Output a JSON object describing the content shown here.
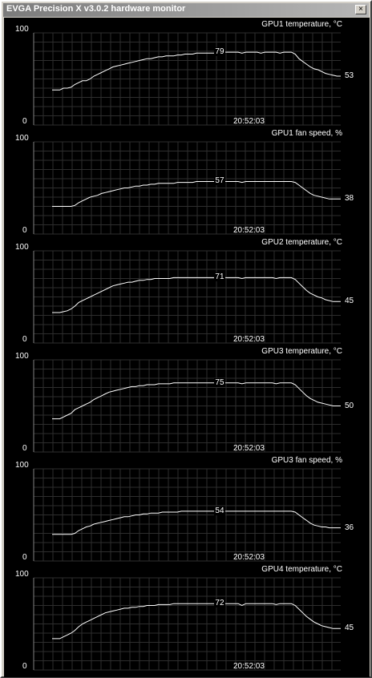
{
  "window": {
    "title": "EVGA Precision X v3.0.2 hardware monitor",
    "close_label": "×"
  },
  "graphs": [
    {
      "title": "GPU1 temperature, °C",
      "y_max": "100",
      "y_min": "0",
      "time": "20:52:03",
      "current": "53",
      "max": "79",
      "series": [
        38,
        38,
        38,
        40,
        40,
        41,
        44,
        46,
        48,
        48,
        50,
        53,
        55,
        57,
        59,
        61,
        63,
        64,
        65,
        66,
        67,
        68,
        69,
        70,
        71,
        72,
        72,
        73,
        74,
        74,
        75,
        75,
        75,
        76,
        76,
        77,
        77,
        77,
        78,
        78,
        78,
        78,
        78,
        78,
        79,
        79,
        79,
        79,
        79,
        79,
        78,
        79,
        79,
        79,
        79,
        78,
        79,
        79,
        79,
        79,
        78,
        79,
        79,
        79,
        77,
        72,
        69,
        66,
        63,
        61,
        60,
        58,
        56,
        55,
        54,
        53,
        53
      ]
    },
    {
      "title": "GPU1 fan speed, %",
      "y_max": "100",
      "y_min": "0",
      "time": "20:52:03",
      "current": "38",
      "max": "57",
      "series": [
        30,
        30,
        30,
        30,
        30,
        30,
        31,
        34,
        36,
        38,
        40,
        41,
        42,
        44,
        45,
        46,
        47,
        48,
        49,
        50,
        50,
        51,
        52,
        52,
        53,
        53,
        54,
        54,
        55,
        55,
        55,
        55,
        55,
        56,
        56,
        56,
        56,
        56,
        57,
        57,
        57,
        57,
        57,
        57,
        57,
        57,
        57,
        57,
        57,
        57,
        56,
        57,
        57,
        57,
        57,
        57,
        57,
        57,
        57,
        57,
        57,
        57,
        57,
        57,
        56,
        53,
        50,
        47,
        44,
        42,
        41,
        40,
        39,
        38,
        38,
        38,
        38
      ]
    },
    {
      "title": "GPU2 temperature, °C",
      "y_max": "100",
      "y_min": "0",
      "time": "20:52:03",
      "current": "45",
      "max": "71",
      "series": [
        33,
        33,
        33,
        34,
        35,
        37,
        40,
        44,
        46,
        48,
        50,
        52,
        54,
        56,
        58,
        60,
        62,
        63,
        64,
        65,
        66,
        66,
        67,
        68,
        68,
        69,
        69,
        70,
        70,
        70,
        70,
        70,
        71,
        71,
        71,
        71,
        71,
        71,
        71,
        71,
        71,
        71,
        71,
        71,
        71,
        71,
        71,
        71,
        71,
        71,
        70,
        71,
        71,
        71,
        71,
        71,
        71,
        71,
        71,
        70,
        71,
        71,
        71,
        71,
        69,
        65,
        61,
        57,
        54,
        52,
        50,
        49,
        47,
        46,
        45,
        45,
        45
      ]
    },
    {
      "title": "GPU3 temperature, °C",
      "y_max": "100",
      "y_min": "0",
      "time": "20:52:03",
      "current": "50",
      "max": "75",
      "series": [
        36,
        36,
        36,
        38,
        40,
        42,
        46,
        48,
        50,
        52,
        54,
        57,
        59,
        61,
        63,
        65,
        66,
        67,
        68,
        69,
        70,
        71,
        71,
        72,
        72,
        73,
        73,
        73,
        74,
        74,
        74,
        74,
        75,
        75,
        75,
        75,
        75,
        75,
        75,
        75,
        75,
        75,
        75,
        75,
        75,
        75,
        75,
        75,
        75,
        75,
        74,
        75,
        75,
        75,
        75,
        75,
        75,
        75,
        75,
        74,
        75,
        75,
        75,
        75,
        73,
        69,
        65,
        61,
        58,
        56,
        54,
        53,
        52,
        51,
        50,
        50,
        50
      ]
    },
    {
      "title": "GPU3 fan speed, %",
      "y_max": "100",
      "y_min": "0",
      "time": "20:52:03",
      "current": "36",
      "max": "54",
      "series": [
        29,
        29,
        29,
        29,
        29,
        29,
        30,
        33,
        35,
        37,
        38,
        40,
        41,
        42,
        43,
        44,
        45,
        46,
        47,
        48,
        48,
        49,
        50,
        50,
        51,
        51,
        52,
        52,
        52,
        53,
        53,
        53,
        53,
        53,
        54,
        54,
        54,
        54,
        54,
        54,
        54,
        54,
        54,
        54,
        54,
        54,
        54,
        54,
        54,
        54,
        54,
        54,
        54,
        54,
        54,
        54,
        54,
        54,
        54,
        54,
        54,
        54,
        54,
        54,
        53,
        50,
        47,
        44,
        41,
        39,
        38,
        37,
        37,
        36,
        36,
        36,
        36
      ]
    },
    {
      "title": "GPU4 temperature, °C",
      "y_max": "100",
      "y_min": "0",
      "time": "20:52:03",
      "current": "45",
      "max": "72",
      "series": [
        34,
        34,
        34,
        36,
        38,
        40,
        43,
        47,
        50,
        52,
        54,
        56,
        58,
        60,
        62,
        63,
        64,
        65,
        66,
        67,
        67,
        68,
        68,
        69,
        69,
        70,
        70,
        70,
        71,
        71,
        71,
        71,
        72,
        72,
        72,
        72,
        72,
        72,
        72,
        72,
        72,
        72,
        72,
        72,
        72,
        72,
        72,
        72,
        72,
        72,
        70,
        72,
        72,
        72,
        72,
        72,
        72,
        72,
        72,
        71,
        72,
        72,
        72,
        72,
        70,
        66,
        62,
        58,
        55,
        52,
        50,
        48,
        47,
        46,
        45,
        45,
        45
      ]
    }
  ],
  "colors": {
    "background": "#000000",
    "grid": "#2e2e2e",
    "line": "#ffffff",
    "frame": "#d4d0c8"
  }
}
